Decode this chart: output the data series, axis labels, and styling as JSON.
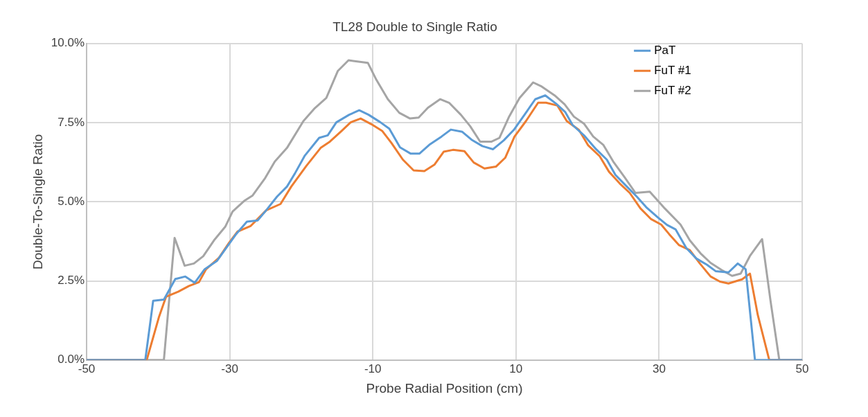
{
  "chart_data": {
    "type": "line",
    "title": "TL28 Double to Single Ratio",
    "xlabel": "Probe Radial Position (cm)",
    "ylabel": "Double-To-Single Ratio",
    "xlim": [
      -50,
      50
    ],
    "xticks": [
      -50,
      -30,
      -10,
      10,
      30,
      50
    ],
    "ylim": [
      0,
      10
    ],
    "yticks": [
      {
        "value": 0,
        "label": "0.0%"
      },
      {
        "value": 2.5,
        "label": "2.5%"
      },
      {
        "value": 5,
        "label": "5.0%"
      },
      {
        "value": 7.5,
        "label": "7.5%"
      },
      {
        "value": 10,
        "label": "10.0%"
      }
    ],
    "grid": true,
    "legend": "top right",
    "marker": "none",
    "line_style": "solid",
    "series": [
      {
        "name": "PaT",
        "color": "#5b9bd5",
        "x": [
          -50,
          -41.8,
          -40.7,
          -39.2,
          -37.6,
          -36.2,
          -34.9,
          -33.5,
          -31.8,
          -30.5,
          -29.1,
          -27.6,
          -26.1,
          -24.9,
          -23.4,
          -22.0,
          -20.9,
          -19.5,
          -17.5,
          -16.3,
          -15.1,
          -13.3,
          -11.9,
          -10.6,
          -9.0,
          -7.7,
          -6.2,
          -4.7,
          -3.5,
          -2.0,
          -0.4,
          0.9,
          2.5,
          3.8,
          5.3,
          6.8,
          8.3,
          9.7,
          11.2,
          12.7,
          14.1,
          15.6,
          16.9,
          17.9,
          19.5,
          21.2,
          22.7,
          23.9,
          25.5,
          26.9,
          28.2,
          29.8,
          31.1,
          32.3,
          33.8,
          35.2,
          36.7,
          37.9,
          39.7,
          41.0,
          42.1,
          43.4,
          50
        ],
        "values": [
          0,
          0,
          1.87,
          1.91,
          2.56,
          2.64,
          2.44,
          2.87,
          3.13,
          3.54,
          3.98,
          4.37,
          4.41,
          4.73,
          5.16,
          5.48,
          5.89,
          6.46,
          7.02,
          7.1,
          7.51,
          7.75,
          7.89,
          7.75,
          7.52,
          7.31,
          6.72,
          6.52,
          6.52,
          6.82,
          7.06,
          7.28,
          7.21,
          6.96,
          6.76,
          6.66,
          6.94,
          7.27,
          7.75,
          8.24,
          8.36,
          8.1,
          7.83,
          7.43,
          7.1,
          6.66,
          6.33,
          5.85,
          5.48,
          5.16,
          4.83,
          4.51,
          4.27,
          4.13,
          3.54,
          3.21,
          3.01,
          2.81,
          2.77,
          3.05,
          2.87,
          0,
          0
        ]
      },
      {
        "name": "FuT #1",
        "color": "#ed7d31",
        "x": [
          -50,
          -41.6,
          -39.9,
          -38.9,
          -37.2,
          -35.7,
          -34.3,
          -33.3,
          -31.5,
          -30.1,
          -28.9,
          -27.1,
          -24.9,
          -22.9,
          -21.4,
          -19.3,
          -17.3,
          -16.0,
          -14.4,
          -13.1,
          -11.7,
          -10.2,
          -8.7,
          -7.4,
          -5.8,
          -4.3,
          -2.8,
          -1.4,
          -0.1,
          1.2,
          2.8,
          4.1,
          5.6,
          7.2,
          8.5,
          9.8,
          11.4,
          13.1,
          14.2,
          15.8,
          17.1,
          18.8,
          20.1,
          21.7,
          23.0,
          24.5,
          25.9,
          27.4,
          28.9,
          30.3,
          31.4,
          32.8,
          34.3,
          35.7,
          37.2,
          38.5,
          39.7,
          41.6,
          42.7,
          43.8,
          45.4,
          50
        ],
        "values": [
          0,
          0,
          1.35,
          2.0,
          2.16,
          2.34,
          2.46,
          2.87,
          3.23,
          3.7,
          4.06,
          4.23,
          4.73,
          4.93,
          5.48,
          6.13,
          6.7,
          6.9,
          7.23,
          7.51,
          7.63,
          7.45,
          7.24,
          6.86,
          6.33,
          5.99,
          5.97,
          6.17,
          6.58,
          6.64,
          6.6,
          6.24,
          6.05,
          6.11,
          6.39,
          7.06,
          7.55,
          8.13,
          8.13,
          8.04,
          7.55,
          7.27,
          6.78,
          6.44,
          5.95,
          5.58,
          5.28,
          4.79,
          4.45,
          4.28,
          3.98,
          3.63,
          3.47,
          3.05,
          2.64,
          2.48,
          2.42,
          2.55,
          2.73,
          1.42,
          0,
          0
        ]
      },
      {
        "name": "FuT #2",
        "color": "#a5a5a5",
        "x": [
          -50,
          -39.2,
          -37.7,
          -36.3,
          -35.0,
          -33.7,
          -32.2,
          -30.6,
          -29.6,
          -27.9,
          -26.8,
          -25.1,
          -23.7,
          -22.0,
          -19.7,
          -18.1,
          -16.5,
          -14.9,
          -13.4,
          -10.7,
          -9.5,
          -7.9,
          -6.3,
          -4.8,
          -3.6,
          -2.3,
          -0.6,
          0.7,
          2.3,
          3.6,
          5.0,
          6.6,
          7.7,
          9.0,
          10.5,
          12.4,
          13.6,
          15.4,
          16.8,
          18.1,
          19.5,
          20.8,
          22.2,
          23.6,
          25.2,
          26.7,
          28.7,
          30.8,
          33.0,
          34.3,
          35.8,
          37.2,
          38.7,
          40.2,
          41.4,
          42.7,
          44.4,
          45.6,
          46.8,
          50
        ],
        "values": [
          0,
          0,
          3.86,
          2.98,
          3.05,
          3.28,
          3.78,
          4.22,
          4.69,
          5.04,
          5.2,
          5.73,
          6.27,
          6.7,
          7.55,
          7.96,
          8.28,
          9.13,
          9.47,
          9.39,
          8.85,
          8.24,
          7.81,
          7.63,
          7.66,
          7.97,
          8.24,
          8.12,
          7.75,
          7.39,
          6.9,
          6.9,
          7.02,
          7.67,
          8.28,
          8.77,
          8.64,
          8.36,
          8.08,
          7.69,
          7.47,
          7.06,
          6.8,
          6.27,
          5.77,
          5.28,
          5.32,
          4.79,
          4.28,
          3.78,
          3.37,
          3.07,
          2.85,
          2.66,
          2.73,
          3.29,
          3.82,
          1.83,
          0,
          0
        ]
      }
    ]
  }
}
